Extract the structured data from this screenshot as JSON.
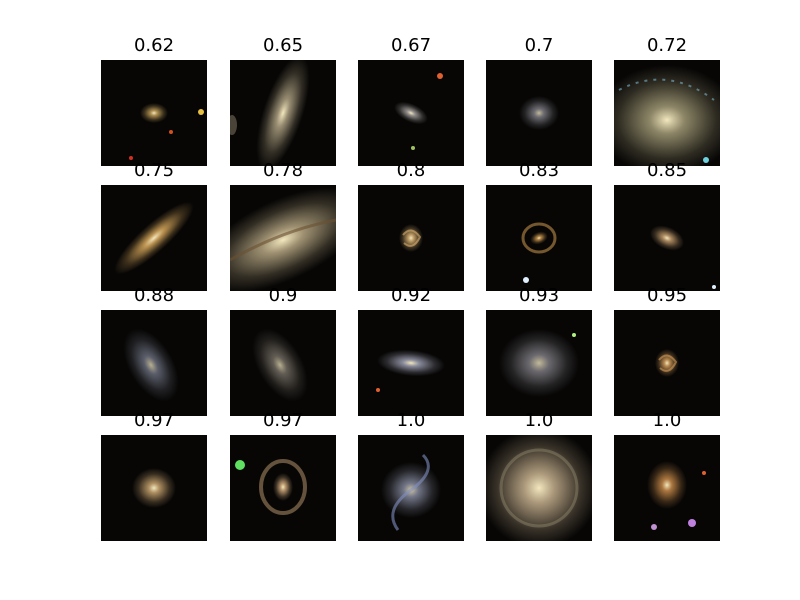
{
  "panels": [
    {
      "label": "0.62",
      "morph": "compact-core",
      "color": "#c8a45c"
    },
    {
      "label": "0.65",
      "morph": "edge-on-large",
      "color": "#b0a384"
    },
    {
      "label": "0.67",
      "morph": "small-spiral",
      "color": "#a6a2a0"
    },
    {
      "label": "0.7",
      "morph": "faint-spiral",
      "color": "#9a9aa4"
    },
    {
      "label": "0.72",
      "morph": "large-spiral-arc",
      "color": "#a49c78"
    },
    {
      "label": "0.75",
      "morph": "edge-on-bright",
      "color": "#d8a85c"
    },
    {
      "label": "0.78",
      "morph": "edge-on-closeup",
      "color": "#b8a884"
    },
    {
      "label": "0.8",
      "morph": "compact-spiral",
      "color": "#d8b070"
    },
    {
      "label": "0.83",
      "morph": "barred-ring",
      "color": "#d09a50"
    },
    {
      "label": "0.85",
      "morph": "oval-spiral",
      "color": "#c8a070"
    },
    {
      "label": "0.88",
      "morph": "diffuse-spiral",
      "color": "#8a90a4"
    },
    {
      "label": "0.9",
      "morph": "diffuse-spiral",
      "color": "#948c80"
    },
    {
      "label": "0.92",
      "morph": "barred-spiral",
      "color": "#9ea0b4"
    },
    {
      "label": "0.93",
      "morph": "face-on-diffuse",
      "color": "#9a98a0"
    },
    {
      "label": "0.95",
      "morph": "compact-spiral",
      "color": "#d09a58"
    },
    {
      "label": "0.97",
      "morph": "round-spiral",
      "color": "#c8a470"
    },
    {
      "label": "0.97",
      "morph": "ring-spiral",
      "color": "#d8b080"
    },
    {
      "label": "1.0",
      "morph": "grand-design",
      "color": "#9aa0b8"
    },
    {
      "label": "1.0",
      "morph": "large-face-on",
      "color": "#c8b290"
    },
    {
      "label": "1.0",
      "morph": "multi-arm",
      "color": "#c88a4a"
    }
  ]
}
